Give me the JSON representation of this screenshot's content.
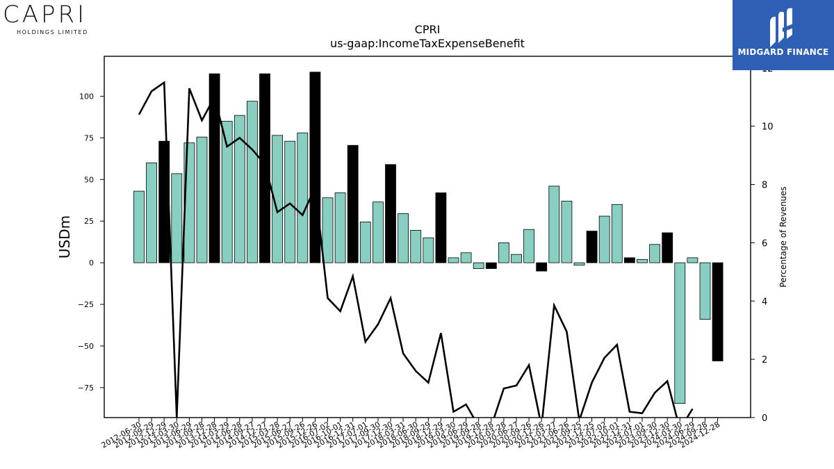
{
  "brand": {
    "left_name": "CAPRI",
    "left_sub": "HOLDINGS LIMITED",
    "right_name": "MIDGARD FINANCE",
    "right_bg": "#2d5fb4"
  },
  "chart_data": {
    "type": "bar",
    "title": "CPRI",
    "subtitle": "us-gaap:IncomeTaxExpenseBenefit",
    "ylabel": "USDm",
    "y2label": "Percentage of Revenues",
    "ylim": [
      -93,
      124
    ],
    "y2lim": [
      0,
      12.4
    ],
    "yticks": [
      -75,
      -50,
      -25,
      0,
      25,
      50,
      75,
      100
    ],
    "y2ticks": [
      0,
      2,
      4,
      6,
      8,
      10,
      12
    ],
    "categories": [
      "2012-06-30",
      "2012-09-29",
      "2012-12-29",
      "2013-03-30",
      "2013-06-29",
      "2013-09-28",
      "2013-12-28",
      "2014-03-29",
      "2014-06-28",
      "2014-09-27",
      "2014-12-27",
      "2015-03-28",
      "2015-06-27",
      "2015-09-26",
      "2015-12-26",
      "2016-07-02",
      "2016-10-01",
      "2016-12-31",
      "2017-07-01",
      "2017-09-30",
      "2017-12-30",
      "2018-03-31",
      "2018-06-30",
      "2018-09-29",
      "2018-12-29",
      "2019-03-30",
      "2019-06-29",
      "2019-09-28",
      "2019-12-28",
      "2020-03-28",
      "2020-06-27",
      "2020-09-26",
      "2020-12-26",
      "2021-03-27",
      "2021-06-26",
      "2021-09-25",
      "2021-12-25",
      "2022-07-02",
      "2022-10-01",
      "2022-12-31",
      "2023-07-01",
      "2023-09-30",
      "2023-12-30",
      "2024-03-30",
      "2024-06-29",
      "2024-09-28",
      "2024-12-28"
    ],
    "series": [
      {
        "type": "bar",
        "values": [
          43,
          60,
          73,
          53.5,
          72,
          75.5,
          113.5,
          85,
          88.5,
          97,
          113.5,
          76.5,
          73,
          78,
          114.5,
          39,
          42,
          70.5,
          24.5,
          36.5,
          59,
          29.5,
          19.5,
          15,
          42,
          3,
          6,
          -3.5,
          -3.5,
          12,
          5,
          20,
          -5,
          46,
          37,
          -1.5,
          19,
          28,
          35,
          3,
          2,
          11,
          18,
          -84.5,
          3,
          -34,
          -59
        ],
        "highlight": [
          false,
          false,
          true,
          false,
          false,
          false,
          true,
          false,
          false,
          false,
          true,
          false,
          false,
          false,
          true,
          false,
          false,
          true,
          false,
          false,
          true,
          false,
          false,
          false,
          true,
          false,
          false,
          false,
          true,
          false,
          false,
          false,
          true,
          false,
          false,
          false,
          true,
          false,
          false,
          true,
          false,
          false,
          true,
          false,
          false,
          false,
          true
        ]
      },
      {
        "type": "line",
        "axis": "right",
        "values": [
          10.4,
          11.2,
          11.5,
          0,
          11.3,
          10.2,
          11.0,
          9.3,
          9.6,
          9.2,
          8.7,
          7.05,
          7.35,
          6.95,
          7.9,
          4.1,
          3.65,
          4.85,
          2.6,
          3.2,
          4.1,
          2.2,
          1.6,
          1.2,
          2.9,
          0.2,
          0.45,
          -0.3,
          -0.3,
          1.0,
          1.1,
          1.8,
          -0.3,
          3.85,
          2.95,
          -0.1,
          1.2,
          2.05,
          2.5,
          0.2,
          0.15,
          0.85,
          1.25,
          -0.4,
          0.3,
          null,
          null
        ]
      }
    ],
    "colors": {
      "bar": "#88cfc2",
      "bar_highlight": "#000000",
      "line": "#000000"
    },
    "grid": false,
    "legend": "none"
  }
}
